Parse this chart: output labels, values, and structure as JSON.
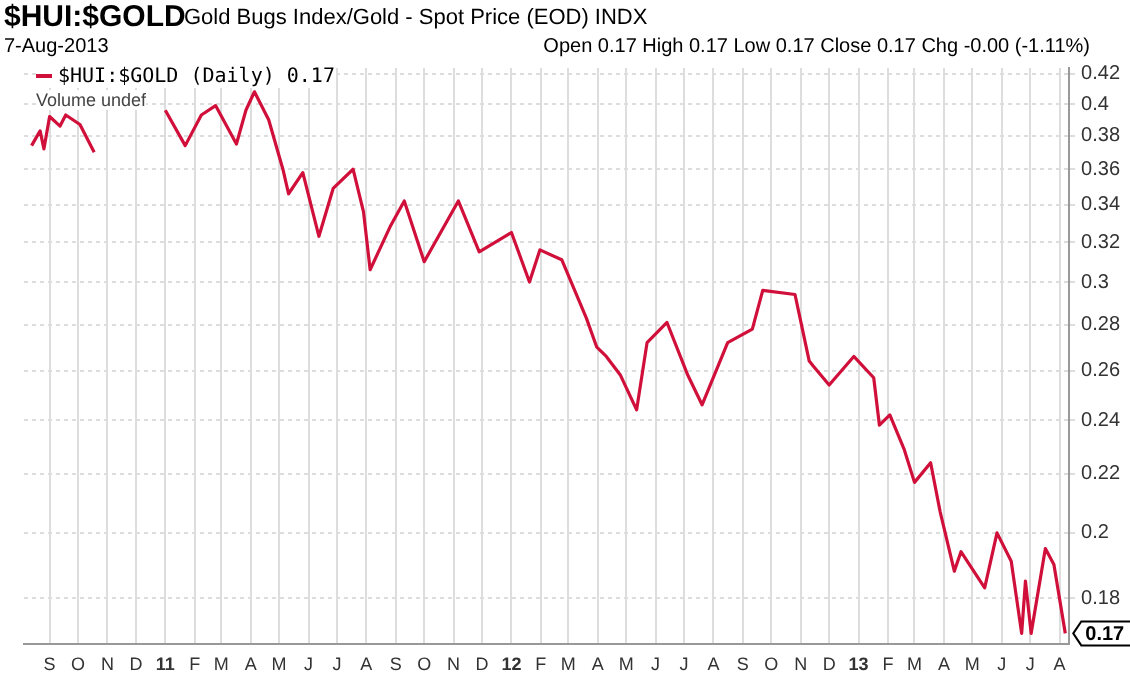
{
  "chart_data": {
    "type": "line",
    "title": "$HUI:$GOLD",
    "subtitle": "Gold Bugs Index/Gold - Spot Price (EOD)  INDX",
    "annotations": [
      "7-Aug-2013",
      "Open 0.17  High 0.17  Low 0.17  Close 0.17  Chg -0.00 (-1.11%)",
      "Volume undef",
      {
        "text": "0.17",
        "x": "2013-08-07",
        "y": 0.17
      }
    ],
    "x": [
      "2010-08-13",
      "2010-08-22",
      "2010-08-26",
      "2010-09-01",
      "2010-09-12",
      "2010-09-18",
      "2010-10-03",
      "2010-10-18",
      "2010-11-04",
      "2010-11-30",
      "2011-01-01",
      "2011-01-22",
      "2011-02-08",
      "2011-02-23",
      "2011-03-17",
      "2011-03-27",
      "2011-04-05",
      "2011-04-20",
      "2011-05-05",
      "2011-05-11",
      "2011-05-26",
      "2011-06-12",
      "2011-06-27",
      "2011-07-18",
      "2011-07-29",
      "2011-08-05",
      "2011-08-26",
      "2011-09-10",
      "2011-10-01",
      "2011-11-06",
      "2011-11-28",
      "2012-01-01",
      "2012-01-20",
      "2012-01-31",
      "2012-02-23",
      "2012-03-20",
      "2012-03-31",
      "2012-04-10",
      "2012-04-25",
      "2012-05-12",
      "2012-05-23",
      "2012-06-13",
      "2012-07-05",
      "2012-07-20",
      "2012-08-16",
      "2012-09-11",
      "2012-09-22",
      "2012-10-26",
      "2012-11-10",
      "2012-11-14",
      "2012-12-01",
      "2012-12-27",
      "2013-01-17",
      "2013-01-23",
      "2013-02-03",
      "2013-02-18",
      "2013-03-01",
      "2013-03-18",
      "2013-03-28",
      "2013-04-12",
      "2013-04-19",
      "2013-05-14",
      "2013-05-27",
      "2013-06-11",
      "2013-06-22",
      "2013-06-26",
      "2013-07-02",
      "2013-07-17",
      "2013-07-26",
      "2013-08-07"
    ],
    "series": [
      {
        "name": "$HUI:$GOLD (Daily) 0.17",
        "color": "#d0103a",
        "values": [
          0.374,
          0.383,
          0.372,
          0.392,
          0.386,
          0.393,
          0.387,
          0.37,
          null,
          null,
          0.396,
          0.374,
          0.393,
          0.399,
          0.375,
          0.396,
          0.408,
          0.39,
          0.36,
          0.346,
          0.358,
          0.323,
          0.349,
          0.36,
          0.336,
          0.306,
          0.328,
          0.342,
          0.31,
          0.342,
          0.315,
          0.325,
          0.3,
          0.316,
          0.311,
          0.283,
          0.27,
          0.266,
          0.258,
          0.244,
          0.272,
          0.281,
          0.258,
          0.246,
          0.272,
          0.278,
          0.296,
          0.294,
          0.264,
          0.262,
          0.254,
          0.266,
          0.257,
          0.238,
          0.242,
          0.229,
          0.217,
          0.224,
          0.207,
          0.188,
          0.194,
          0.183,
          0.2,
          0.191,
          0.17,
          0.185,
          0.17,
          0.195,
          0.19,
          0.17
        ]
      }
    ],
    "xlim": [
      "2010-08-05",
      "2013-08-11"
    ],
    "xticks": [
      {
        "value": "2010-09-01",
        "label": "S"
      },
      {
        "value": "2010-10-01",
        "label": "O"
      },
      {
        "value": "2010-11-01",
        "label": "N"
      },
      {
        "value": "2010-12-01",
        "label": "D"
      },
      {
        "value": "2011-01-01",
        "label": "11"
      },
      {
        "value": "2011-02-01",
        "label": "F"
      },
      {
        "value": "2011-03-01",
        "label": "M"
      },
      {
        "value": "2011-04-01",
        "label": "A"
      },
      {
        "value": "2011-05-01",
        "label": "M"
      },
      {
        "value": "2011-06-01",
        "label": "J"
      },
      {
        "value": "2011-07-01",
        "label": "J"
      },
      {
        "value": "2011-08-01",
        "label": "A"
      },
      {
        "value": "2011-09-01",
        "label": "S"
      },
      {
        "value": "2011-10-01",
        "label": "O"
      },
      {
        "value": "2011-11-01",
        "label": "N"
      },
      {
        "value": "2011-12-01",
        "label": "D"
      },
      {
        "value": "2012-01-01",
        "label": "12"
      },
      {
        "value": "2012-02-01",
        "label": "F"
      },
      {
        "value": "2012-03-01",
        "label": "M"
      },
      {
        "value": "2012-04-01",
        "label": "A"
      },
      {
        "value": "2012-05-01",
        "label": "M"
      },
      {
        "value": "2012-06-01",
        "label": "J"
      },
      {
        "value": "2012-07-01",
        "label": "J"
      },
      {
        "value": "2012-08-01",
        "label": "A"
      },
      {
        "value": "2012-09-01",
        "label": "S"
      },
      {
        "value": "2012-10-01",
        "label": "O"
      },
      {
        "value": "2012-11-01",
        "label": "N"
      },
      {
        "value": "2012-12-01",
        "label": "D"
      },
      {
        "value": "2013-01-01",
        "label": "13"
      },
      {
        "value": "2013-02-01",
        "label": "F"
      },
      {
        "value": "2013-03-01",
        "label": "M"
      },
      {
        "value": "2013-04-01",
        "label": "A"
      },
      {
        "value": "2013-05-01",
        "label": "M"
      },
      {
        "value": "2013-06-01",
        "label": "J"
      },
      {
        "value": "2013-07-01",
        "label": "J"
      },
      {
        "value": "2013-08-01",
        "label": "A"
      }
    ],
    "ylim": [
      0.167,
      0.424
    ],
    "yticks": [
      0.18,
      0.2,
      0.22,
      0.24,
      0.26,
      0.28,
      0.3,
      0.32,
      0.34,
      0.36,
      0.38,
      0.4,
      0.42
    ],
    "log": "y",
    "grid": true,
    "legend": "top left",
    "marker": "none",
    "line_style": "solid"
  }
}
